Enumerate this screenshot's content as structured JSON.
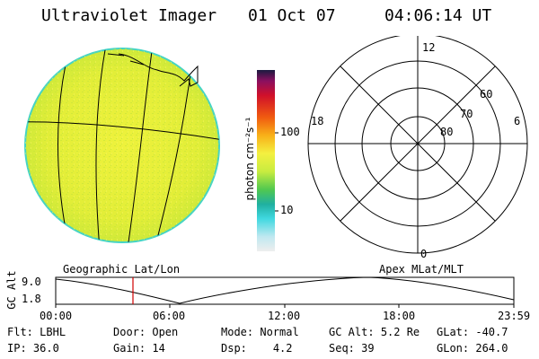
{
  "header": {
    "instrument": "Ultraviolet Imager",
    "date": "01 Oct 07",
    "time": "04:06:14 UT"
  },
  "colorbar": {
    "label": "photon cm⁻²s⁻¹",
    "tick_100": "100",
    "tick_10": "10"
  },
  "polar_plot": {
    "mlt_top": "12",
    "mlt_left": "18",
    "mlt_right": "6",
    "mlt_bottom": "0",
    "lat_60": "60",
    "lat_70": "70",
    "lat_80": "80"
  },
  "altitude_plot": {
    "left_title": "Geographic Lat/Lon",
    "right_title": "Apex MLat/MLT",
    "y_label": "GC Alt",
    "y_max": "9.0",
    "y_min": "1.8",
    "x_ticks": [
      "00:00",
      "06:00",
      "12:00",
      "18:00",
      "23:59"
    ]
  },
  "status": {
    "flt_label": "Flt:",
    "flt_value": "LBHL",
    "ip_label": "IP:",
    "ip_value": "36.0",
    "door_label": "Door:",
    "door_value": "Open",
    "gain_label": "Gain:",
    "gain_value": "14",
    "mode_label": "Mode:",
    "mode_value": "Normal",
    "dsp_label": "Dsp:",
    "dsp_value": "4.2",
    "gcalt_label": "GC Alt:",
    "gcalt_value": "5.2 Re",
    "seq_label": "Seq:",
    "seq_value": "39",
    "glat_label": "GLat:",
    "glat_value": "-40.7",
    "glon_label": "GLon:",
    "glon_value": "264.0"
  },
  "colors": {
    "globe_fill": "#e6f03a",
    "globe_edge": "#3ad0c0",
    "marker": "#d00000"
  }
}
